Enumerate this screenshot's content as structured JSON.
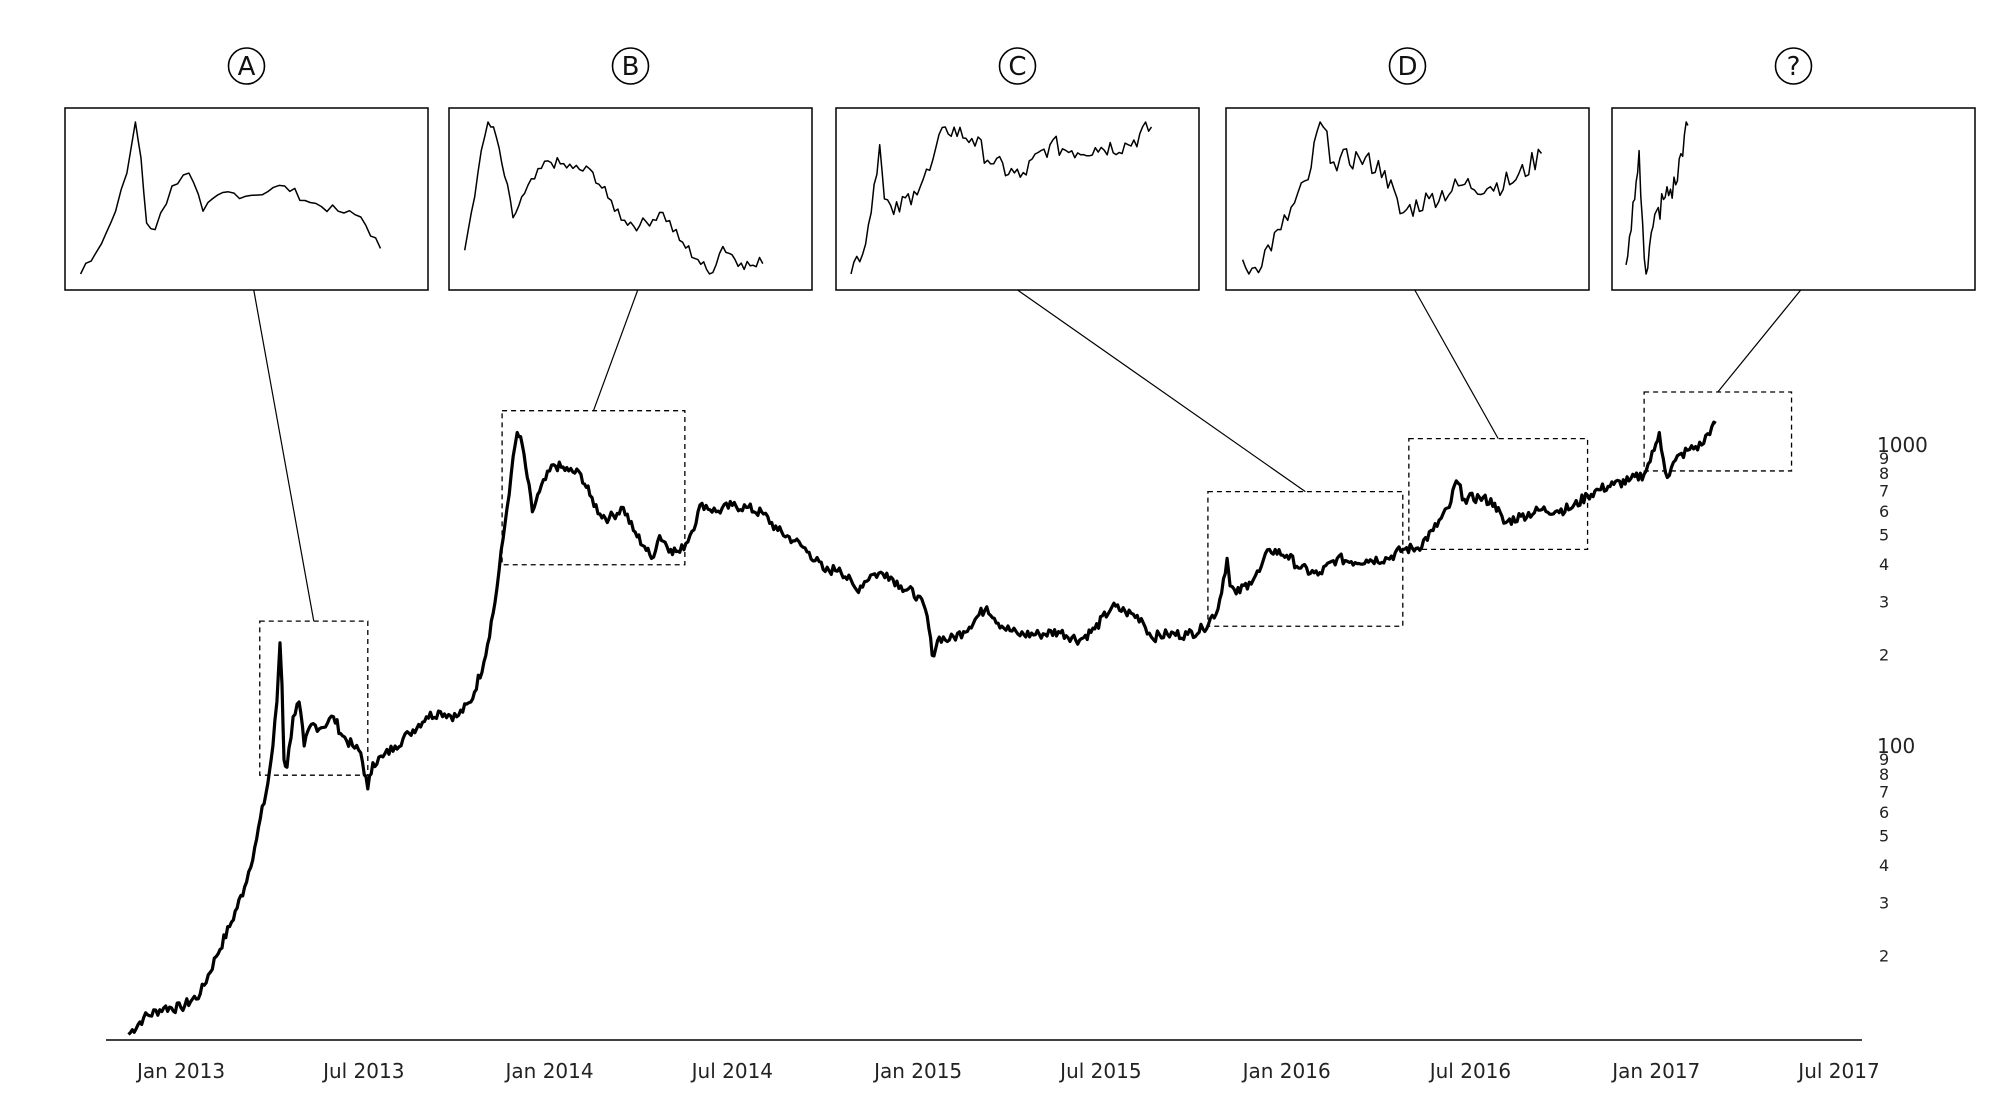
{
  "chart_data": {
    "type": "line",
    "title": "",
    "xlabel": "",
    "ylabel": "",
    "y_scale": "log",
    "ylim": [
      10,
      1300
    ],
    "xlim": [
      "2012-11-01",
      "2017-08-01"
    ],
    "grid": false,
    "legend": "none",
    "x_ticks": [
      "Jan 2013",
      "Jul 2013",
      "Jan 2014",
      "Jul 2014",
      "Jan 2015",
      "Jul 2015",
      "Jan 2016",
      "Jul 2016",
      "Jan 2017",
      "Jul 2017"
    ],
    "y_major_ticks": [
      {
        "value": 100,
        "label": "100"
      },
      {
        "value": 1000,
        "label": "1000"
      }
    ],
    "y_minor_ticks": [
      {
        "value": 20,
        "label": "2"
      },
      {
        "value": 30,
        "label": "3"
      },
      {
        "value": 40,
        "label": "4"
      },
      {
        "value": 50,
        "label": "5"
      },
      {
        "value": 60,
        "label": "6"
      },
      {
        "value": 70,
        "label": "7"
      },
      {
        "value": 80,
        "label": "8"
      },
      {
        "value": 90,
        "label": "9"
      },
      {
        "value": 200,
        "label": "2"
      },
      {
        "value": 300,
        "label": "3"
      },
      {
        "value": 400,
        "label": "4"
      },
      {
        "value": 500,
        "label": "5"
      },
      {
        "value": 600,
        "label": "6"
      },
      {
        "value": 700,
        "label": "7"
      },
      {
        "value": 800,
        "label": "8"
      },
      {
        "value": 900,
        "label": "9"
      }
    ],
    "series": [
      {
        "values": [
          [
            "2012-11-10",
            11
          ],
          [
            "2012-11-25",
            12.5
          ],
          [
            "2012-12-15",
            13.5
          ],
          [
            "2013-01-01",
            13.5
          ],
          [
            "2013-01-20",
            15
          ],
          [
            "2013-02-05",
            20
          ],
          [
            "2013-02-20",
            26
          ],
          [
            "2013-03-05",
            34
          ],
          [
            "2013-03-15",
            46
          ],
          [
            "2013-03-28",
            75
          ],
          [
            "2013-04-02",
            100
          ],
          [
            "2013-04-06",
            140
          ],
          [
            "2013-04-09",
            220
          ],
          [
            "2013-04-11",
            160
          ],
          [
            "2013-04-13",
            90
          ],
          [
            "2013-04-16",
            85
          ],
          [
            "2013-04-22",
            125
          ],
          [
            "2013-04-28",
            140
          ],
          [
            "2013-05-03",
            100
          ],
          [
            "2013-05-10",
            118
          ],
          [
            "2013-05-20",
            115
          ],
          [
            "2013-06-01",
            125
          ],
          [
            "2013-06-10",
            108
          ],
          [
            "2013-06-20",
            100
          ],
          [
            "2013-06-28",
            95
          ],
          [
            "2013-07-05",
            72
          ],
          [
            "2013-07-10",
            88
          ],
          [
            "2013-07-20",
            92
          ],
          [
            "2013-08-01",
            100
          ],
          [
            "2013-08-15",
            110
          ],
          [
            "2013-09-01",
            125
          ],
          [
            "2013-09-15",
            130
          ],
          [
            "2013-10-01",
            125
          ],
          [
            "2013-10-15",
            140
          ],
          [
            "2013-10-28",
            190
          ],
          [
            "2013-11-08",
            300
          ],
          [
            "2013-11-18",
            550
          ],
          [
            "2013-11-24",
            800
          ],
          [
            "2013-11-30",
            1100
          ],
          [
            "2013-12-05",
            1000
          ],
          [
            "2013-12-10",
            780
          ],
          [
            "2013-12-15",
            600
          ],
          [
            "2013-12-22",
            700
          ],
          [
            "2014-01-05",
            860
          ],
          [
            "2014-01-20",
            820
          ],
          [
            "2014-02-01",
            800
          ],
          [
            "2014-02-10",
            680
          ],
          [
            "2014-02-20",
            590
          ],
          [
            "2014-03-01",
            570
          ],
          [
            "2014-03-15",
            620
          ],
          [
            "2014-03-25",
            520
          ],
          [
            "2014-04-05",
            460
          ],
          [
            "2014-04-12",
            420
          ],
          [
            "2014-04-20",
            500
          ],
          [
            "2014-05-01",
            450
          ],
          [
            "2014-05-10",
            440
          ],
          [
            "2014-05-20",
            500
          ],
          [
            "2014-06-01",
            640
          ],
          [
            "2014-06-15",
            600
          ],
          [
            "2014-07-01",
            630
          ],
          [
            "2014-07-15",
            620
          ],
          [
            "2014-08-01",
            590
          ],
          [
            "2014-08-15",
            520
          ],
          [
            "2014-09-01",
            480
          ],
          [
            "2014-09-15",
            440
          ],
          [
            "2014-10-01",
            380
          ],
          [
            "2014-10-15",
            390
          ],
          [
            "2014-11-01",
            330
          ],
          [
            "2014-11-15",
            370
          ],
          [
            "2014-12-01",
            375
          ],
          [
            "2014-12-15",
            340
          ],
          [
            "2015-01-01",
            315
          ],
          [
            "2015-01-10",
            270
          ],
          [
            "2015-01-15",
            200
          ],
          [
            "2015-01-22",
            230
          ],
          [
            "2015-02-01",
            225
          ],
          [
            "2015-02-15",
            240
          ],
          [
            "2015-03-10",
            290
          ],
          [
            "2015-03-25",
            250
          ],
          [
            "2015-04-10",
            235
          ],
          [
            "2015-05-01",
            235
          ],
          [
            "2015-05-20",
            240
          ],
          [
            "2015-06-10",
            225
          ],
          [
            "2015-06-25",
            245
          ],
          [
            "2015-07-12",
            290
          ],
          [
            "2015-07-25",
            280
          ],
          [
            "2015-08-10",
            265
          ],
          [
            "2015-08-20",
            230
          ],
          [
            "2015-09-05",
            235
          ],
          [
            "2015-09-25",
            235
          ],
          [
            "2015-10-10",
            245
          ],
          [
            "2015-10-25",
            285
          ],
          [
            "2015-11-03",
            420
          ],
          [
            "2015-11-06",
            340
          ],
          [
            "2015-11-12",
            320
          ],
          [
            "2015-11-25",
            350
          ],
          [
            "2015-12-05",
            380
          ],
          [
            "2015-12-15",
            450
          ],
          [
            "2016-01-01",
            430
          ],
          [
            "2016-01-15",
            390
          ],
          [
            "2016-02-01",
            370
          ],
          [
            "2016-02-20",
            420
          ],
          [
            "2016-03-05",
            410
          ],
          [
            "2016-03-20",
            415
          ],
          [
            "2016-04-10",
            420
          ],
          [
            "2016-04-25",
            450
          ],
          [
            "2016-05-10",
            455
          ],
          [
            "2016-05-25",
            520
          ],
          [
            "2016-06-10",
            620
          ],
          [
            "2016-06-17",
            760
          ],
          [
            "2016-06-25",
            660
          ],
          [
            "2016-07-10",
            670
          ],
          [
            "2016-07-25",
            640
          ],
          [
            "2016-08-03",
            550
          ],
          [
            "2016-08-20",
            580
          ],
          [
            "2016-09-10",
            610
          ],
          [
            "2016-09-25",
            605
          ],
          [
            "2016-10-10",
            620
          ],
          [
            "2016-10-25",
            680
          ],
          [
            "2016-11-05",
            710
          ],
          [
            "2016-11-20",
            740
          ],
          [
            "2016-12-05",
            760
          ],
          [
            "2016-12-20",
            800
          ],
          [
            "2016-12-30",
            960
          ],
          [
            "2017-01-04",
            1100
          ],
          [
            "2017-01-08",
            900
          ],
          [
            "2017-01-12",
            780
          ],
          [
            "2017-01-20",
            890
          ],
          [
            "2017-02-01",
            960
          ],
          [
            "2017-02-15",
            1000
          ],
          [
            "2017-02-25",
            1150
          ],
          [
            "2017-03-01",
            1180
          ]
        ]
      }
    ],
    "zoom_regions": [
      {
        "label": "A",
        "start": "2013-03-20",
        "end": "2013-07-05",
        "ymin": 80,
        "ymax": 260
      },
      {
        "label": "B",
        "start": "2013-11-15",
        "end": "2014-05-15",
        "ymin": 400,
        "ymax": 1300
      },
      {
        "label": "C",
        "start": "2015-10-15",
        "end": "2016-04-25",
        "ymin": 250,
        "ymax": 700
      },
      {
        "label": "D",
        "start": "2016-05-01",
        "end": "2016-10-25",
        "ymin": 450,
        "ymax": 1050
      },
      {
        "label": "?",
        "start": "2016-12-20",
        "end": "2017-05-15",
        "ymin": 820,
        "ymax": 1500
      }
    ]
  }
}
